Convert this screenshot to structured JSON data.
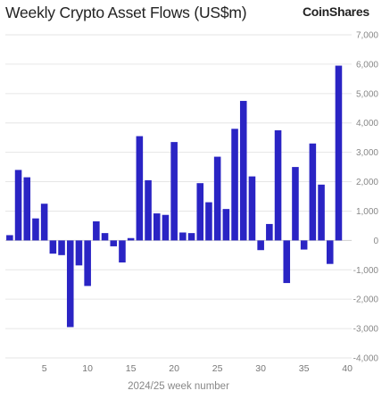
{
  "title": "Weekly Crypto Asset Flows (US$m)",
  "brand": "CoinShares",
  "colors": {
    "bar": "#2a24c4",
    "grid": "#e6e6e6",
    "baseline": "#cfcfcf"
  },
  "chart_data": {
    "type": "bar",
    "xlabel": "2024/25 week number",
    "ylabel": "",
    "ylim": [
      -4000,
      7000
    ],
    "yticks": [
      -4000,
      -3000,
      -2000,
      -1000,
      0,
      1000,
      2000,
      3000,
      4000,
      5000,
      6000,
      7000
    ],
    "ytick_labels": [
      "-4,000",
      "-3,000",
      "-2,000",
      "-1,000",
      "0",
      "1,000",
      "2,000",
      "3,000",
      "4,000",
      "5,000",
      "6,000",
      "7,000"
    ],
    "xticks": [
      5,
      10,
      15,
      20,
      25,
      30,
      35,
      40
    ],
    "grid": "horizontal",
    "categories": [
      1,
      2,
      3,
      4,
      5,
      6,
      7,
      8,
      9,
      10,
      11,
      12,
      13,
      14,
      15,
      16,
      17,
      18,
      19,
      20,
      21,
      22,
      23,
      24,
      25,
      26,
      27,
      28,
      29,
      30,
      31,
      32,
      33,
      34,
      35,
      36,
      37,
      38,
      39,
      40
    ],
    "values": [
      180,
      2400,
      2150,
      750,
      1250,
      -450,
      -500,
      -2950,
      -850,
      -1550,
      650,
      250,
      -200,
      -750,
      80,
      3550,
      2050,
      920,
      870,
      3350,
      270,
      250,
      1950,
      1300,
      2850,
      1070,
      3800,
      4750,
      2180,
      -330,
      560,
      3750,
      -1450,
      2500,
      -310,
      3300,
      1900,
      -800,
      5950,
      0
    ]
  }
}
